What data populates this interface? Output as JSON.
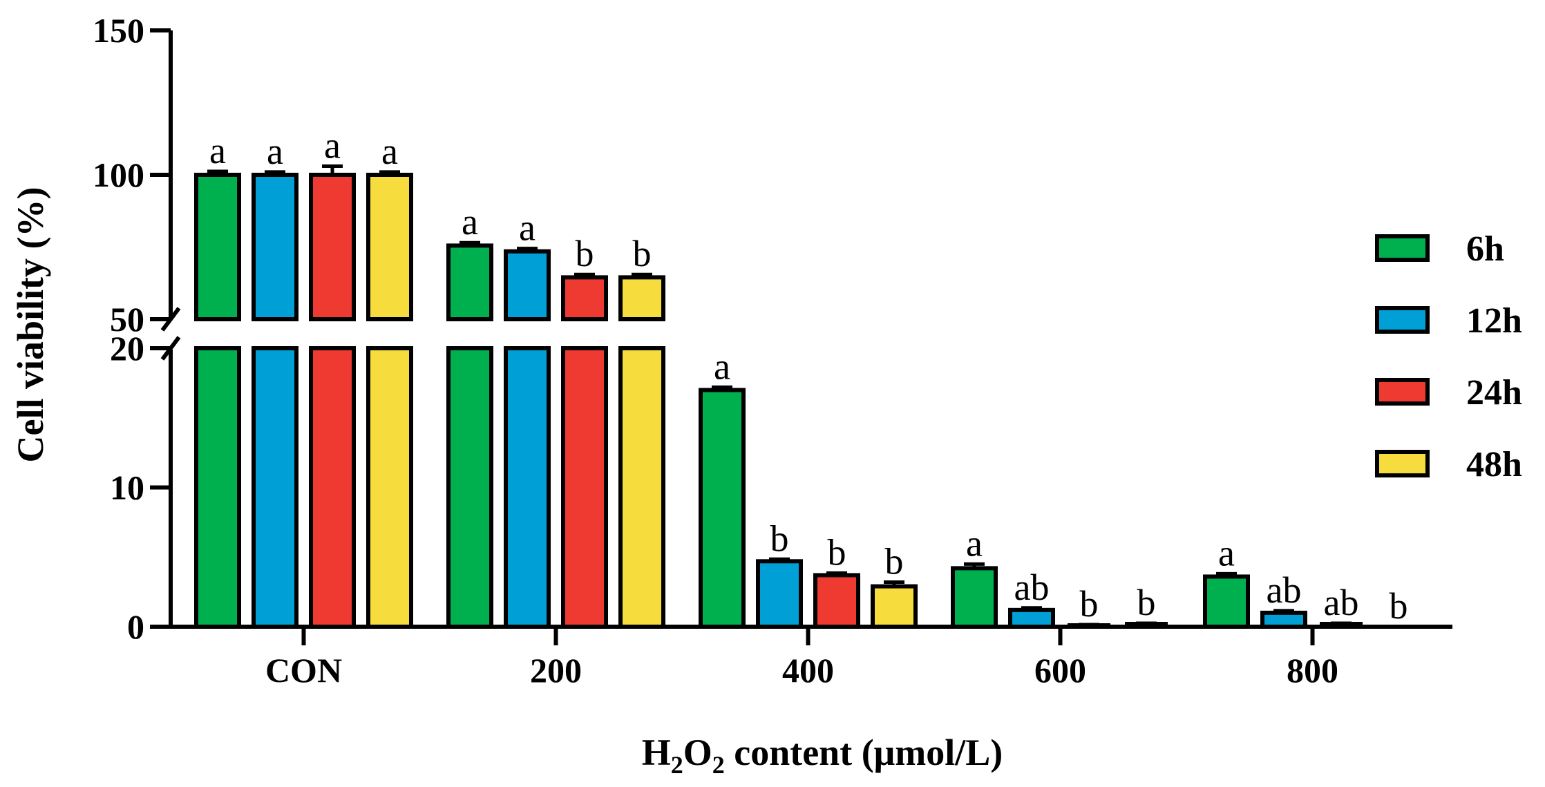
{
  "chart_data": {
    "type": "bar",
    "title": "",
    "xlabel": {
      "prefix": "H",
      "sub1": "2",
      "mid": "O",
      "sub2": "2",
      "suffix": " content (μmol/L)"
    },
    "ylabel": "Cell viability (%)",
    "categories": [
      "CON",
      "200",
      "400",
      "600",
      "800"
    ],
    "y_axis": {
      "broken": true,
      "lower_segment": {
        "range": [
          0,
          20
        ],
        "ticks": [
          "0",
          "10",
          "20"
        ],
        "tick_values": [
          0,
          10,
          20
        ]
      },
      "upper_segment": {
        "range": [
          50,
          150
        ],
        "ticks": [
          "50",
          "100",
          "150"
        ],
        "tick_values": [
          50,
          100,
          150
        ]
      }
    },
    "series": [
      {
        "name": "6h",
        "color": "#00b04f",
        "values": [
          100,
          75.5,
          17.0,
          4.2,
          3.6
        ],
        "errors": [
          1.2,
          1.0,
          0.2,
          0.3,
          0.2
        ],
        "labels": [
          "a",
          "a",
          "a",
          "a",
          "a"
        ]
      },
      {
        "name": "12h",
        "color": "#00a0d6",
        "values": [
          100,
          73.5,
          4.7,
          1.2,
          1.0
        ],
        "errors": [
          1.0,
          1.0,
          0.15,
          0.15,
          0.15
        ],
        "labels": [
          "a",
          "a",
          "b",
          "ab",
          "ab"
        ]
      },
      {
        "name": "24h",
        "color": "#ee3a30",
        "values": [
          100,
          64.5,
          3.7,
          0.1,
          0.2
        ],
        "errors": [
          3.0,
          1.0,
          0.15,
          0.05,
          0.05
        ],
        "labels": [
          "a",
          "b",
          "b",
          "b",
          "ab"
        ]
      },
      {
        "name": "48h",
        "color": "#f7dc3e",
        "values": [
          100,
          64.5,
          2.9,
          0.2,
          0.0
        ],
        "errors": [
          1.0,
          1.0,
          0.3,
          0.05,
          0.0
        ],
        "labels": [
          "a",
          "b",
          "b",
          "b",
          "b"
        ]
      }
    ],
    "legend_position": "right",
    "grid": false
  }
}
